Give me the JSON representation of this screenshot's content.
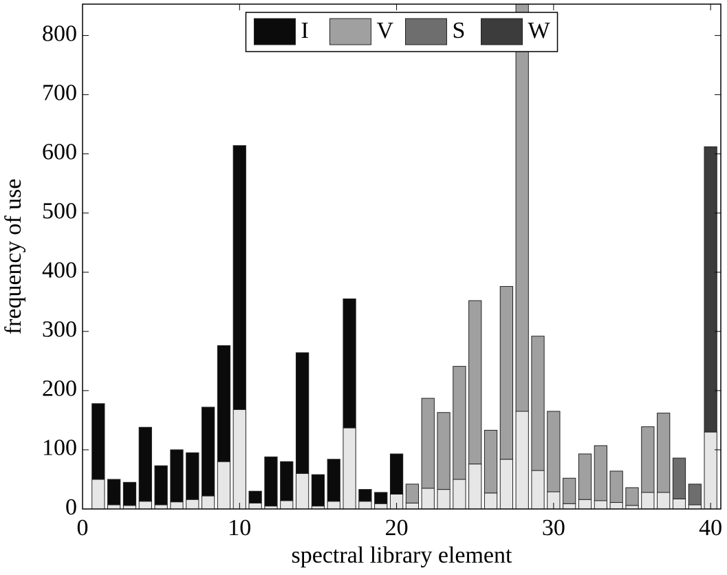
{
  "chart_data": {
    "type": "stacked_bar",
    "xlabel": "spectral library element",
    "ylabel": "frequency of use",
    "x": [
      1,
      2,
      3,
      4,
      5,
      6,
      7,
      8,
      9,
      10,
      11,
      12,
      13,
      14,
      15,
      16,
      17,
      18,
      19,
      20,
      21,
      22,
      23,
      24,
      25,
      26,
      27,
      28,
      29,
      30,
      31,
      32,
      33,
      34,
      35,
      36,
      37,
      38,
      39,
      40
    ],
    "series": [
      {
        "color": "#e6e6e6",
        "values": [
          50,
          7,
          6,
          13,
          7,
          12,
          16,
          22,
          80,
          168,
          10,
          5,
          14,
          60,
          5,
          13,
          137,
          13,
          9,
          25,
          10,
          35,
          33,
          50,
          76,
          27,
          84,
          165,
          65,
          29,
          9,
          16,
          14,
          11,
          6,
          28,
          28,
          17,
          7,
          130
        ]
      },
      {
        "name": "I",
        "color": "#0b0b0b",
        "values": [
          128,
          43,
          39,
          125,
          66,
          88,
          79,
          150,
          196,
          446,
          20,
          83,
          66,
          204,
          53,
          71,
          218,
          20,
          19,
          68,
          null,
          null,
          null,
          null,
          null,
          null,
          null,
          null,
          null,
          null,
          null,
          null,
          null,
          null,
          null,
          null,
          null,
          null,
          null,
          null
        ]
      },
      {
        "name": "V",
        "color": "#a0a0a0",
        "values": [
          null,
          null,
          null,
          null,
          null,
          null,
          null,
          null,
          null,
          null,
          null,
          null,
          null,
          null,
          null,
          null,
          null,
          null,
          null,
          null,
          32,
          152,
          130,
          191,
          276,
          106,
          292,
          705,
          227,
          136,
          43,
          77,
          93,
          53,
          30,
          111,
          134,
          null,
          null,
          null
        ]
      },
      {
        "name": "S",
        "color": "#6e6e6e",
        "values": [
          null,
          null,
          null,
          null,
          null,
          null,
          null,
          null,
          null,
          null,
          null,
          null,
          null,
          null,
          null,
          null,
          null,
          null,
          null,
          null,
          null,
          null,
          null,
          null,
          null,
          null,
          null,
          null,
          null,
          null,
          null,
          null,
          null,
          null,
          null,
          null,
          null,
          69,
          35,
          null
        ]
      },
      {
        "name": "W",
        "color": "#3c3c3c",
        "values": [
          null,
          null,
          null,
          null,
          null,
          null,
          null,
          null,
          null,
          null,
          null,
          null,
          null,
          null,
          null,
          null,
          null,
          null,
          null,
          null,
          null,
          null,
          null,
          null,
          null,
          null,
          null,
          null,
          null,
          null,
          null,
          null,
          null,
          null,
          null,
          null,
          null,
          null,
          null,
          482
        ]
      }
    ],
    "xlim": [
      0,
      40.65
    ],
    "xticks": [
      0,
      10,
      20,
      30,
      40
    ],
    "ylim": [
      0,
      853
    ],
    "yticks": [
      0,
      100,
      200,
      300,
      400,
      500,
      600,
      700,
      800
    ],
    "legend": "top-center"
  }
}
